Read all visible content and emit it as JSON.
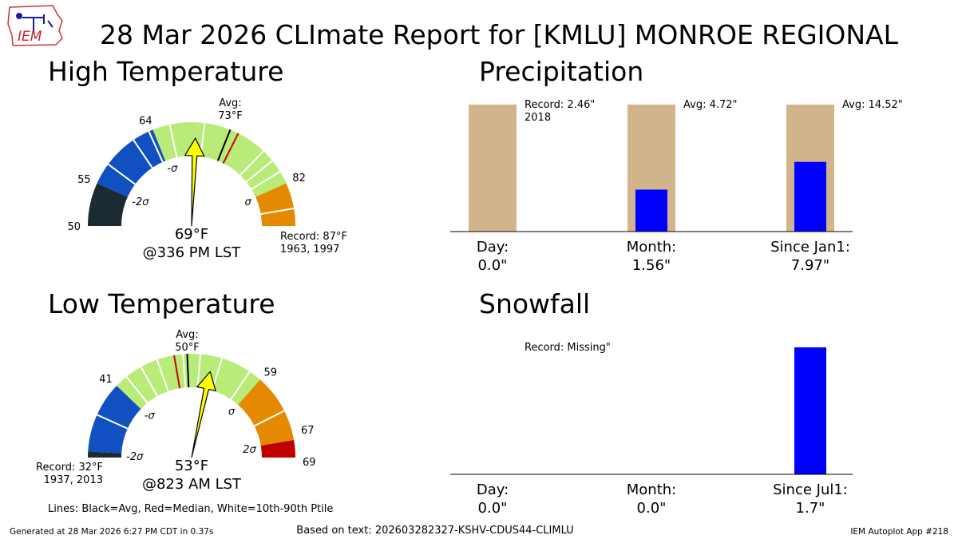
{
  "title": "28 Mar 2026 CLImate Report for [KMLU] MONROE REGIONAL",
  "logo": {
    "text": "IEM",
    "icon": "iem-iowa-map-logo"
  },
  "footer": {
    "left": "Generated at 28 Mar 2026 6:27 PM CDT in 0.37s",
    "center": "Based on text: 202603282327-KSHV-CDUS44-CLIMLU",
    "right": "IEM Autoplot App #218",
    "legend_note": "Lines: Black=Avg, Red=Median, White=10th-90th Ptile"
  },
  "colors": {
    "below_2sigma": "#1b2a33",
    "minus_2sigma_to_minus_sigma": "#1050c0",
    "within_sigma": "#b8eb78",
    "sigma_to_2sigma": "#e58a00",
    "above_2sigma": "#c00000",
    "needle": "#ffff00",
    "precip_avg_bar": "#d2b48c",
    "observed_bar": "#0000ff",
    "avg_line": "#000000",
    "median_line": "#cc0000",
    "percentile_line": "#ffffff"
  },
  "chart_data": [
    {
      "type": "gauge",
      "title": "High Temperature",
      "unit": "°F",
      "range": [
        50,
        87
      ],
      "average": 73,
      "median": 74,
      "observed": 69,
      "observed_label": "69°F",
      "time_label": "@336 PM LST",
      "avg_label": [
        "Avg:",
        "73°F"
      ],
      "record_label": [
        "Record: 87°F",
        "1963, 1997"
      ],
      "bands": [
        {
          "from": 50,
          "to": 55,
          "color_key": "below_2sigma"
        },
        {
          "from": 55,
          "to": 64,
          "color_key": "minus_2sigma_to_minus_sigma"
        },
        {
          "from": 64,
          "to": 82,
          "color_key": "within_sigma"
        },
        {
          "from": 82,
          "to": 87,
          "color_key": "sigma_to_2sigma"
        }
      ],
      "tick_labels": [
        {
          "value": 50,
          "text": "50"
        },
        {
          "value": 55,
          "text": "55"
        },
        {
          "value": 64,
          "text": "64"
        },
        {
          "value": 82,
          "text": "82"
        }
      ],
      "sigma_labels": [
        {
          "value": 55,
          "text": "-2σ"
        },
        {
          "value": 64,
          "text": "-σ"
        },
        {
          "value": 82,
          "text": "σ"
        }
      ],
      "percentile_lines": [
        57.5,
        61.5,
        63.5,
        66,
        70,
        77.5,
        79,
        80.5,
        85
      ]
    },
    {
      "type": "gauge",
      "title": "Low Temperature",
      "unit": "°F",
      "range": [
        32,
        69
      ],
      "average": 50,
      "median": 48.5,
      "observed": 53,
      "observed_label": "53°F",
      "time_label": "@823 AM LST",
      "avg_label": [
        "Avg:",
        "50°F"
      ],
      "record_label": [
        "Record: 32°F",
        "1937, 2013"
      ],
      "bands": [
        {
          "from": 32,
          "to": 32.7,
          "color_key": "below_2sigma"
        },
        {
          "from": 32.7,
          "to": 41,
          "color_key": "minus_2sigma_to_minus_sigma"
        },
        {
          "from": 41,
          "to": 59,
          "color_key": "within_sigma"
        },
        {
          "from": 59,
          "to": 67,
          "color_key": "sigma_to_2sigma"
        },
        {
          "from": 67,
          "to": 69,
          "color_key": "above_2sigma"
        }
      ],
      "tick_labels": [
        {
          "value": 41,
          "text": "41"
        },
        {
          "value": 59,
          "text": "59"
        },
        {
          "value": 67,
          "text": "67"
        },
        {
          "value": 69,
          "text": "69"
        }
      ],
      "sigma_labels": [
        {
          "value": 32.7,
          "text": "-2σ"
        },
        {
          "value": 41,
          "text": "-σ"
        },
        {
          "value": 59,
          "text": "σ"
        },
        {
          "value": 67,
          "text": "2σ"
        }
      ],
      "percentile_lines": [
        37,
        42.5,
        44.5,
        46.5,
        49.5,
        51.5,
        54,
        57.5,
        63.5
      ]
    },
    {
      "type": "bar",
      "title": "Precipitation",
      "unit": "\"",
      "categories": [
        "Day:",
        "Month:",
        "Since Jan1:"
      ],
      "value_labels": [
        "0.0\"",
        "1.56\"",
        "7.97\""
      ],
      "observed": [
        0.0,
        1.56,
        7.97
      ],
      "reference": [
        2.46,
        4.72,
        14.52
      ],
      "reference_labels": [
        [
          "Record: 2.46\"",
          "2018"
        ],
        [
          "Avg: 4.72\""
        ],
        [
          "Avg: 14.52\""
        ]
      ]
    },
    {
      "type": "bar",
      "title": "Snowfall",
      "unit": "\"",
      "categories": [
        "Day:",
        "Month:",
        "Since Jul1:"
      ],
      "value_labels": [
        "0.0\"",
        "0.0\"",
        "1.7\""
      ],
      "observed": [
        0.0,
        0.0,
        1.7
      ],
      "reference": [
        null,
        null,
        null
      ],
      "reference_labels": [
        [
          "Record: Missing\""
        ],
        [],
        []
      ]
    }
  ]
}
